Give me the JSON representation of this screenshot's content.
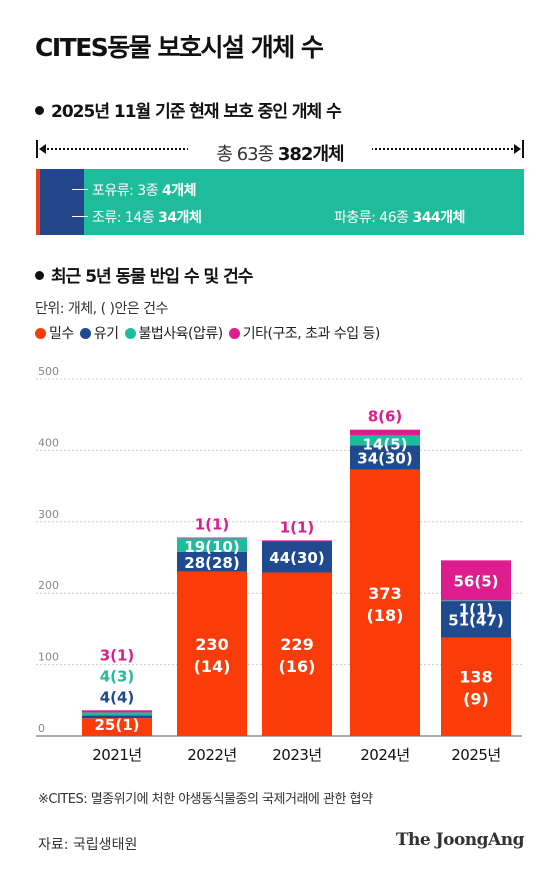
{
  "title": "CITES동물 보호시설 개체 수",
  "section1": {
    "heading": "2025년 11월 기준 현재 보호 중인 개체 수",
    "total_prefix": "총 63종 ",
    "total_bold": "382개체",
    "segments": [
      {
        "name": "포유류",
        "label": "포유류: 3종 ",
        "bold": "4개체",
        "value": 4,
        "color": "#e8401c"
      },
      {
        "name": "조류",
        "label": "조류: 14종 ",
        "bold": "34개체",
        "value": 34,
        "color": "#23468c"
      },
      {
        "name": "파충류",
        "label": "파충류: 46종 ",
        "bold": "344개체",
        "value": 344,
        "color": "#1fbc9c"
      }
    ]
  },
  "section2": {
    "heading": "최근 5년 동물 반입 수 및 건수",
    "unit_note": "단위: 개체, ( )안은 건수",
    "legend": [
      {
        "label": "밀수",
        "color": "#fa3c0a"
      },
      {
        "label": "유기",
        "color": "#1f4a8f"
      },
      {
        "label": "불법사육(압류)",
        "color": "#1fbc9c"
      },
      {
        "label": "기타(구조, 초과 수입 등)",
        "color": "#dd1c8e"
      }
    ]
  },
  "chart_data": {
    "type": "bar",
    "stacked": true,
    "categories": [
      "2021년",
      "2022년",
      "2023년",
      "2024년",
      "2025년"
    ],
    "ylim": [
      0,
      500
    ],
    "yticks": [
      0,
      100,
      200,
      300,
      400,
      500
    ],
    "grid": true,
    "series": [
      {
        "name": "밀수",
        "color": "#fa3c0a",
        "values": [
          25,
          230,
          229,
          373,
          138
        ],
        "cases": [
          1,
          14,
          16,
          18,
          9
        ]
      },
      {
        "name": "유기",
        "color": "#1f4a8f",
        "values": [
          4,
          28,
          44,
          34,
          51
        ],
        "cases": [
          4,
          28,
          30,
          30,
          47
        ]
      },
      {
        "name": "불법사육(압류)",
        "color": "#1fbc9c",
        "values": [
          4,
          19,
          0,
          14,
          1
        ],
        "cases": [
          3,
          10,
          0,
          5,
          1
        ]
      },
      {
        "name": "기타(구조, 초과 수입 등)",
        "color": "#dd1c8e",
        "values": [
          3,
          1,
          1,
          8,
          56
        ],
        "cases": [
          1,
          1,
          1,
          6,
          5
        ]
      }
    ]
  },
  "footnote": "※CITES: 멸종위기에 처한 야생동식물종의 국제거래에 관한 협약",
  "source": "자료: 국립생태원",
  "brand": "The JoongAng"
}
